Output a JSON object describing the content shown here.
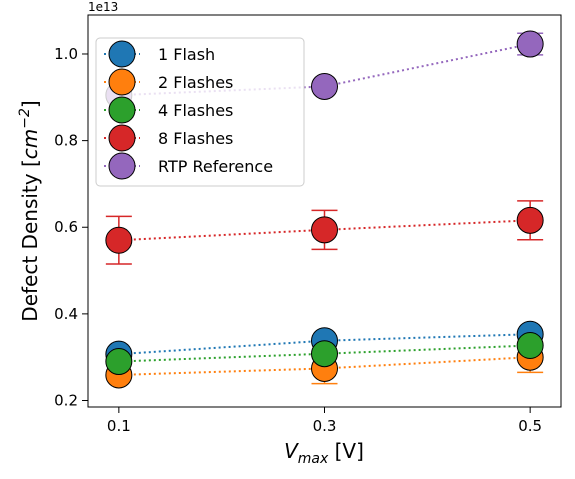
{
  "chart_data": {
    "type": "scatter",
    "title": "",
    "xlabel": "V",
    "xlabel_sub": "max",
    "xlabel_unit": " [V]",
    "ylabel": "Defect Density [",
    "ylabel_unit": "cm",
    "ylabel_exp": "−2",
    "ylabel_close": "]",
    "y_offset_label": "1e13",
    "x_ticks": [
      0.1,
      0.3,
      0.5
    ],
    "x_tick_labels": [
      "0.1",
      "0.3",
      "0.5"
    ],
    "y_ticks": [
      0.2,
      0.4,
      0.6,
      0.8,
      1.0
    ],
    "y_tick_labels": [
      "0.2",
      "0.4",
      "0.6",
      "0.8",
      "1.0"
    ],
    "xlim": [
      0.07,
      0.53
    ],
    "ylim": [
      0.185,
      1.09
    ],
    "grid": false,
    "legend_position": "upper-left",
    "x": [
      0.1,
      0.3,
      0.5
    ],
    "series": [
      {
        "name": "1 Flash",
        "color": "#1f77b4",
        "values": [
          0.307,
          0.338,
          0.353
        ],
        "errors": [
          null,
          null,
          null
        ]
      },
      {
        "name": "2 Flashes",
        "color": "#ff7f0e",
        "values": [
          0.259,
          0.274,
          0.3
        ],
        "errors": [
          null,
          0.035,
          0.035
        ]
      },
      {
        "name": "4 Flashes",
        "color": "#2ca02c",
        "values": [
          0.29,
          0.308,
          0.327
        ],
        "errors": [
          null,
          null,
          null
        ]
      },
      {
        "name": "8 Flashes",
        "color": "#d62728",
        "values": [
          0.57,
          0.594,
          0.616
        ],
        "errors": [
          0.055,
          0.045,
          0.045
        ]
      },
      {
        "name": "RTP Reference",
        "color": "#9467bd",
        "values": [
          0.905,
          0.925,
          1.023
        ],
        "errors": [
          null,
          null,
          0.025
        ]
      }
    ]
  }
}
